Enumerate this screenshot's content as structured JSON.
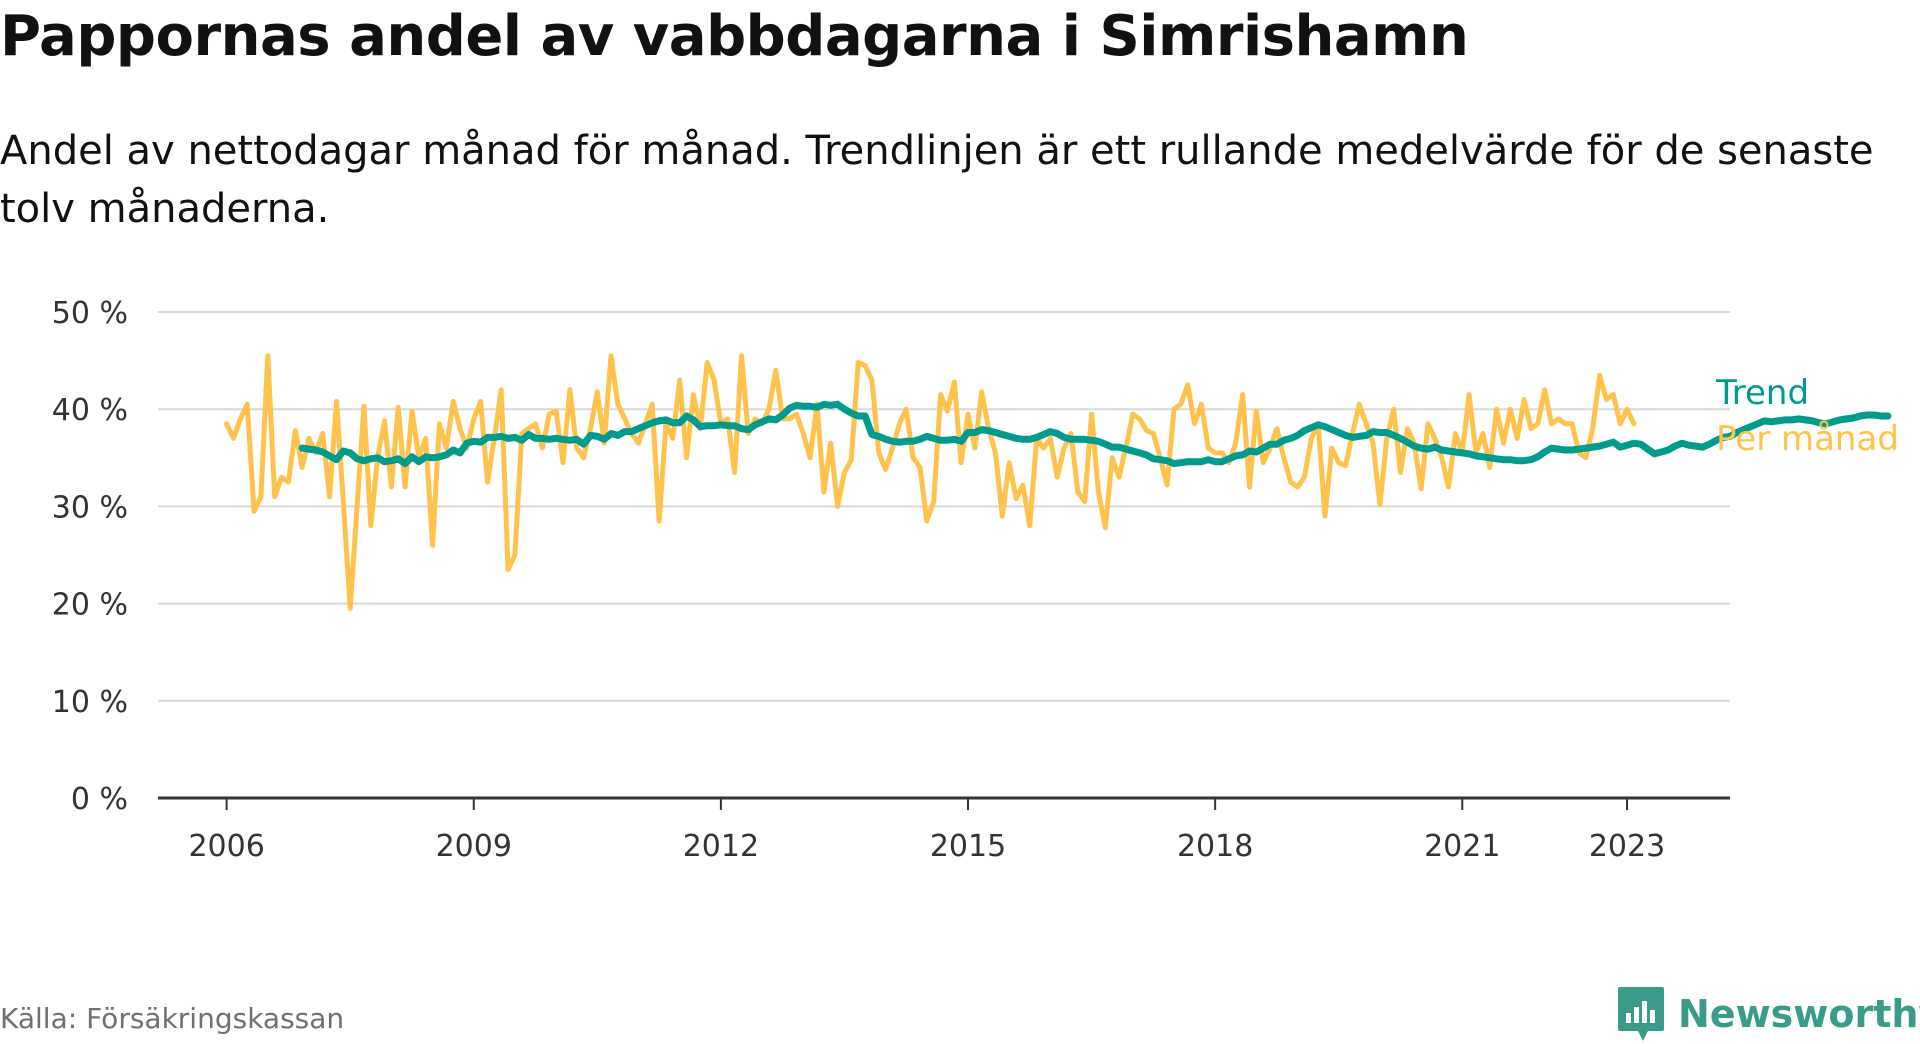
{
  "title": "Pappornas andel av vabbdagarna i Simrishamn",
  "subtitle": "Andel av nettodagar månad för månad. Trendlinjen är ett rullande medelvärde för de senaste tolv månaderna.",
  "source": "Källa: Försäkringskassan",
  "brand": "Newsworthy",
  "colors": {
    "trend": "#009b8d",
    "monthly": "#ffc34d",
    "brand": "#3b9b8b",
    "grid": "#d8d8d8",
    "axis": "#333333"
  },
  "icons": {
    "brand_logo": "bar-chart-speech-bubble-icon"
  },
  "chart_data": {
    "type": "line",
    "ylim": [
      0,
      50
    ],
    "y_ticks": [
      0,
      10,
      20,
      30,
      40,
      50
    ],
    "y_tick_labels": [
      "0 %",
      "10 %",
      "20 %",
      "30 %",
      "40 %",
      "50 %"
    ],
    "x_ticks": [
      2006,
      2009,
      2012,
      2015,
      2018,
      2021,
      2023
    ],
    "x_tick_labels": [
      "2006",
      "2009",
      "2012",
      "2015",
      "2018",
      "2021",
      "2023"
    ],
    "x_unit": "year (decimal, monthly points)",
    "grid": true,
    "legend_placement": "right end of lines",
    "series": [
      {
        "name": "Per månad",
        "color": "#ffc34d",
        "x_start": 2006.0,
        "x_step_months": 1,
        "values": [
          38.5,
          37.0,
          39.0,
          40.5,
          29.5,
          31.0,
          45.5,
          31.0,
          33.0,
          32.5,
          37.8,
          34.0,
          37.0,
          35.5,
          37.5,
          31.0,
          40.8,
          30.5,
          19.5,
          30.0,
          40.3,
          28.0,
          35.0,
          38.8,
          32.0,
          40.2,
          32.0,
          39.8,
          35.0,
          37.0,
          26.0,
          38.5,
          36.0,
          40.8,
          38.0,
          36.0,
          39.0,
          40.8,
          32.5,
          37.0,
          42.0,
          23.5,
          25.0,
          37.5,
          38.0,
          38.5,
          36.0,
          39.5,
          39.8,
          34.5,
          42.0,
          36.0,
          35.0,
          38.0,
          41.8,
          36.5,
          45.5,
          40.5,
          39.0,
          37.5,
          36.5,
          38.5,
          40.5,
          28.5,
          38.5,
          37.0,
          43.0,
          35.0,
          41.5,
          38.0,
          44.8,
          43.0,
          38.5,
          39.0,
          33.5,
          45.5,
          37.5,
          39.0,
          38.5,
          40.0,
          44.0,
          39.0,
          39.0,
          39.5,
          37.5,
          35.0,
          40.5,
          31.5,
          36.5,
          30.0,
          33.5,
          34.8,
          44.8,
          44.5,
          43.0,
          35.5,
          33.8,
          36.0,
          38.5,
          40.0,
          35.0,
          34.0,
          28.5,
          30.5,
          41.5,
          39.8,
          42.8,
          34.5,
          39.5,
          36.0,
          41.8,
          38.0,
          35.5,
          29.0,
          34.5,
          30.8,
          32.2,
          28.0,
          37.0,
          36.0,
          37.0,
          33.0,
          36.0,
          37.5,
          31.5,
          30.5,
          39.5,
          31.5,
          27.8,
          35.0,
          33.0,
          36.0,
          39.5,
          39.0,
          37.8,
          37.5,
          35.0,
          32.2,
          40.0,
          40.5,
          42.5,
          38.5,
          40.5,
          36.0,
          35.5,
          35.5,
          34.5,
          36.5,
          41.5,
          32.0,
          39.8,
          34.5,
          36.0,
          38.0,
          35.0,
          32.5,
          32.0,
          33.0,
          37.0,
          38.5,
          29.0,
          36.0,
          34.5,
          34.2,
          37.5,
          40.5,
          38.5,
          36.5,
          30.2,
          37.0,
          40.0,
          33.5,
          38.0,
          36.5,
          31.8,
          38.5,
          37.0,
          35.0,
          32.0,
          37.5,
          35.5,
          41.5,
          35.5,
          37.5,
          34.0,
          40.0,
          36.5,
          40.0,
          37.0,
          41.0,
          38.0,
          38.5,
          42.0,
          38.5,
          39.0,
          38.5,
          38.5,
          35.5,
          35.0,
          38.0,
          43.5,
          41.0,
          41.5,
          38.5,
          40.0,
          38.5
        ]
      },
      {
        "name": "Trend",
        "color": "#009b8d",
        "x_start": 2006.917,
        "x_step_months": 1,
        "values": [
          36.0,
          35.9,
          35.8,
          35.6,
          35.2,
          34.8,
          35.7,
          35.5,
          34.9,
          34.7,
          34.9,
          35.0,
          34.6,
          34.7,
          34.9,
          34.4,
          35.1,
          34.6,
          35.1,
          35.0,
          35.1,
          35.3,
          35.8,
          35.5,
          36.5,
          36.7,
          36.6,
          37.1,
          37.1,
          37.2,
          37.0,
          37.1,
          36.8,
          37.4,
          37.0,
          37.0,
          36.9,
          37.0,
          36.9,
          36.8,
          36.9,
          36.4,
          37.3,
          37.2,
          36.9,
          37.5,
          37.3,
          37.7,
          37.7,
          38.0,
          38.3,
          38.6,
          38.8,
          38.9,
          38.6,
          38.6,
          39.3,
          38.9,
          38.2,
          38.3,
          38.3,
          38.4,
          38.3,
          38.3,
          38.0,
          37.9,
          38.4,
          38.7,
          39.0,
          38.9,
          39.4,
          40.1,
          40.4,
          40.3,
          40.3,
          40.2,
          40.5,
          40.4,
          40.5,
          40.0,
          39.6,
          39.3,
          39.3,
          37.4,
          37.2,
          36.9,
          36.7,
          36.6,
          36.7,
          36.7,
          36.9,
          37.2,
          37.0,
          36.8,
          36.8,
          36.9,
          36.7,
          37.6,
          37.6,
          37.9,
          37.8,
          37.6,
          37.4,
          37.2,
          37.0,
          36.9,
          36.9,
          37.1,
          37.4,
          37.7,
          37.5,
          37.1,
          36.9,
          36.9,
          36.9,
          36.8,
          36.7,
          36.4,
          36.1,
          36.1,
          35.9,
          35.7,
          35.5,
          35.3,
          34.9,
          34.8,
          34.7,
          34.4,
          34.5,
          34.6,
          34.6,
          34.6,
          34.8,
          34.6,
          34.6,
          34.9,
          35.2,
          35.3,
          35.7,
          35.6,
          36.0,
          36.4,
          36.4,
          36.8,
          37.0,
          37.3,
          37.8,
          38.1,
          38.4,
          38.2,
          37.9,
          37.6,
          37.3,
          37.1,
          37.2,
          37.3,
          37.7,
          37.6,
          37.6,
          37.3,
          37.0,
          36.6,
          36.2,
          36.0,
          35.9,
          36.1,
          35.8,
          35.7,
          35.6,
          35.5,
          35.4,
          35.2,
          35.1,
          35.0,
          34.9,
          34.8,
          34.8,
          34.7,
          34.7,
          34.8,
          35.1,
          35.6,
          36.0,
          35.9,
          35.8,
          35.8,
          35.9,
          36.0,
          36.1,
          36.2,
          36.4,
          36.6,
          36.1,
          36.3,
          36.5,
          36.4,
          35.9,
          35.4,
          35.6,
          35.8,
          36.2,
          36.5,
          36.3,
          36.2,
          36.1,
          36.4,
          36.8,
          37.1,
          37.2,
          37.6,
          37.9,
          38.2,
          38.5,
          38.8,
          38.7,
          38.8,
          38.9,
          38.9,
          39.0,
          38.9,
          38.8,
          38.6,
          38.5,
          38.7,
          38.9,
          39.0,
          39.1,
          39.3,
          39.4,
          39.4,
          39.3,
          39.3
        ]
      }
    ]
  }
}
